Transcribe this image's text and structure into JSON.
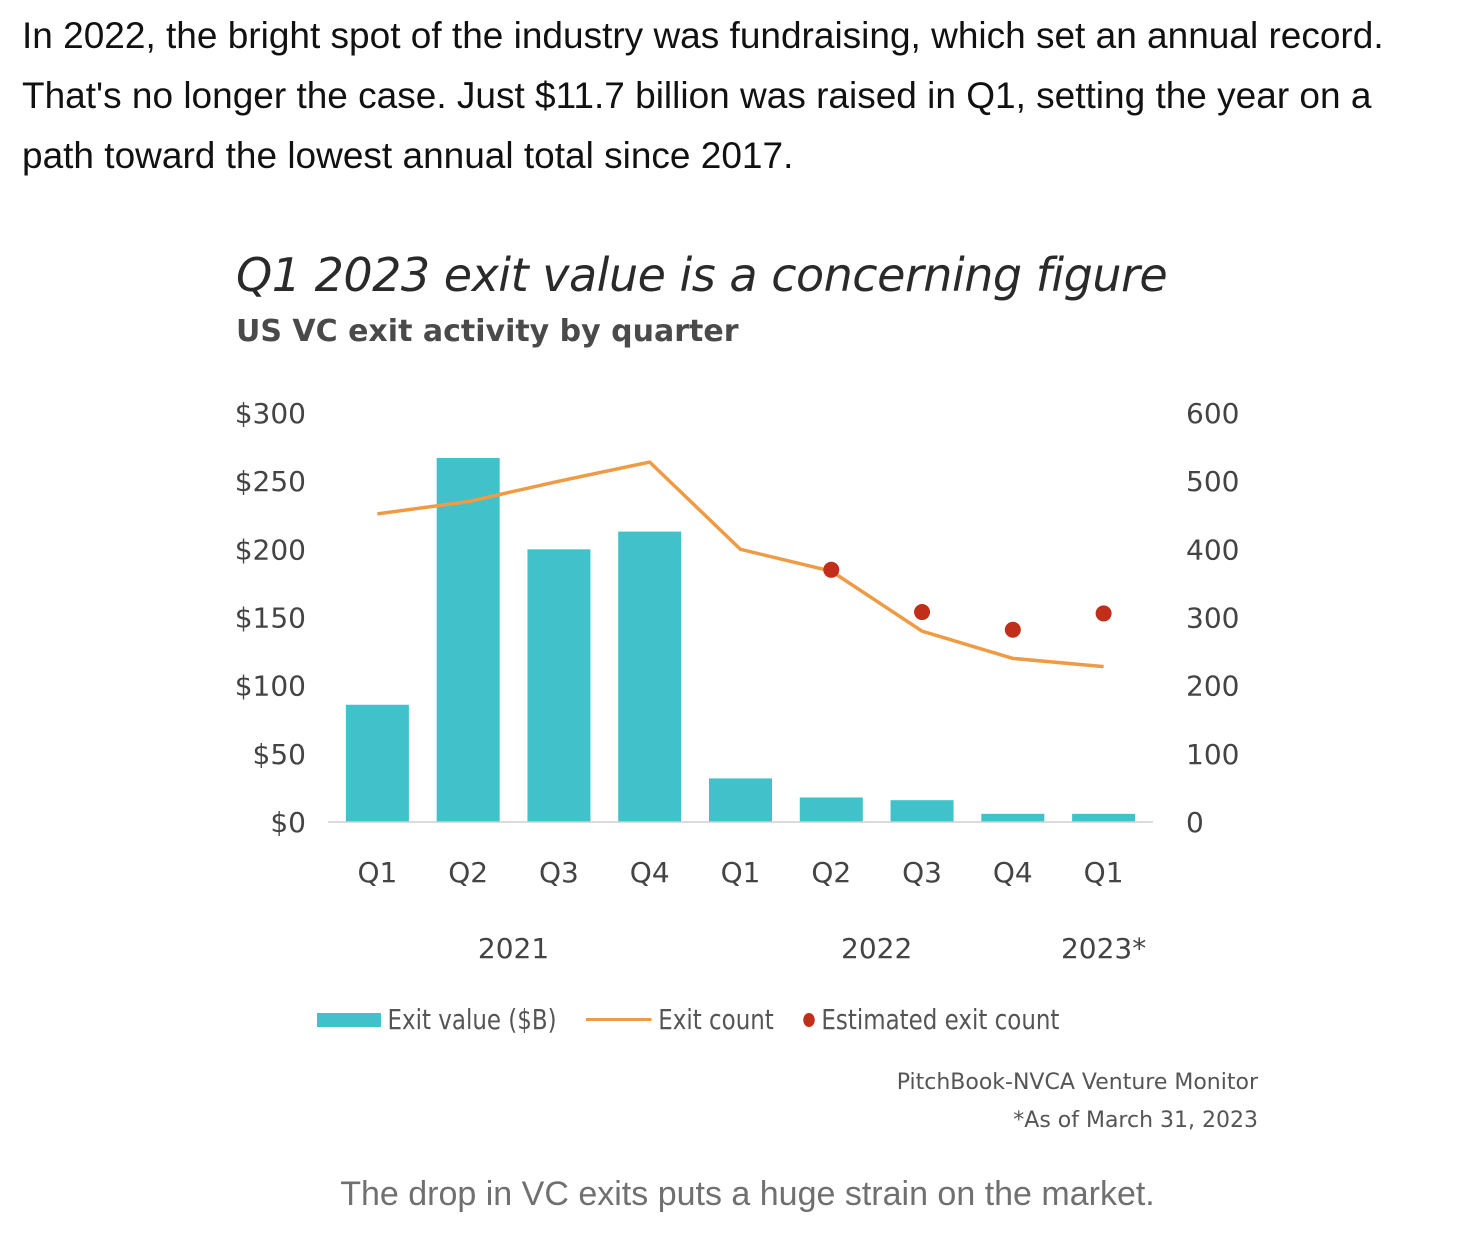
{
  "article": {
    "intro": "In 2022, the bright spot of the industry was fundraising, which set an annual record. That's no longer the case. Just $11.7 billion was raised in Q1, setting the year on a path toward the lowest annual total since 2017.",
    "caption": "The drop in VC exits puts a huge strain on the market."
  },
  "colors": {
    "bar": "#41c1c9",
    "line": "#ef9b45",
    "dot": "#c12f1a"
  },
  "chart_data": {
    "type": "bar",
    "title": "Q1 2023 exit value is a concerning figure",
    "subtitle": "US VC exit activity by quarter",
    "categories": [
      "Q1",
      "Q2",
      "Q3",
      "Q4",
      "Q1",
      "Q2",
      "Q3",
      "Q4",
      "Q1"
    ],
    "year_labels": [
      {
        "label": "2021",
        "from": 0,
        "to": 3
      },
      {
        "label": "2022",
        "from": 4,
        "to": 7
      },
      {
        "label": "2023*",
        "from": 8,
        "to": 8
      }
    ],
    "y_left": {
      "ticks": [
        "$0",
        "$50",
        "$100",
        "$150",
        "$200",
        "$250",
        "$300"
      ],
      "range": [
        0,
        300
      ]
    },
    "y_right": {
      "ticks": [
        "0",
        "100",
        "200",
        "300",
        "400",
        "500",
        "600"
      ],
      "range": [
        0,
        600
      ]
    },
    "series": [
      {
        "name": "Exit value ($B)",
        "type": "bar",
        "axis": "left",
        "values": [
          86,
          267,
          200,
          213,
          32,
          18,
          16,
          6,
          6
        ]
      },
      {
        "name": "Exit count",
        "type": "line",
        "axis": "right",
        "values": [
          452,
          470,
          500,
          528,
          400,
          368,
          280,
          240,
          228
        ]
      },
      {
        "name": "Estimated exit count",
        "type": "scatter",
        "axis": "right",
        "values": [
          null,
          null,
          null,
          null,
          null,
          370,
          308,
          282,
          306
        ]
      }
    ],
    "legend": [
      "Exit value ($B)",
      "Exit count",
      "Estimated exit count"
    ],
    "source": "PitchBook-NVCA Venture Monitor",
    "note": "*As of March 31, 2023"
  }
}
